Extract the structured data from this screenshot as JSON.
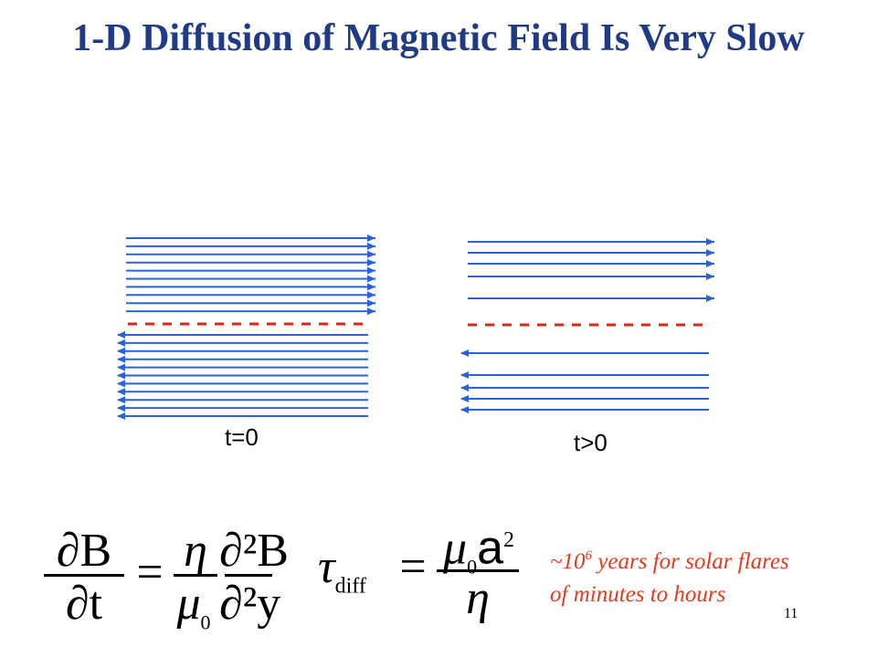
{
  "slide": {
    "title": "1-D Diffusion of Magnetic Field Is Very Slow",
    "number": "11"
  },
  "panels": [
    {
      "label": "t=0",
      "upper_lines": 10,
      "lower_lines": 11
    },
    {
      "label": "t>0",
      "upper_lines": 5,
      "lower_lines": 5
    }
  ],
  "colors": {
    "title": "#1f3a87",
    "field_lines": "#2a62d8",
    "boundary": "#e0241b",
    "note": "#e53a1e"
  },
  "equations": {
    "induction": {
      "lhs_num": "∂B",
      "lhs_den": "∂t",
      "equals": "=",
      "coef_num": "η",
      "coef_den": "μ",
      "coef_den_sub": "0",
      "rhs_num": "∂²B",
      "rhs_den": "∂²y"
    },
    "timescale": {
      "symbol": "τ",
      "subscript": "diff",
      "equals": "=",
      "num": "μ",
      "num_sub": "0",
      "num_var": "a",
      "num_sup": "2",
      "den": "η"
    }
  },
  "note": {
    "prefix": "~10",
    "exponent": "6",
    "text": " years for solar flares of minutes to hours"
  }
}
